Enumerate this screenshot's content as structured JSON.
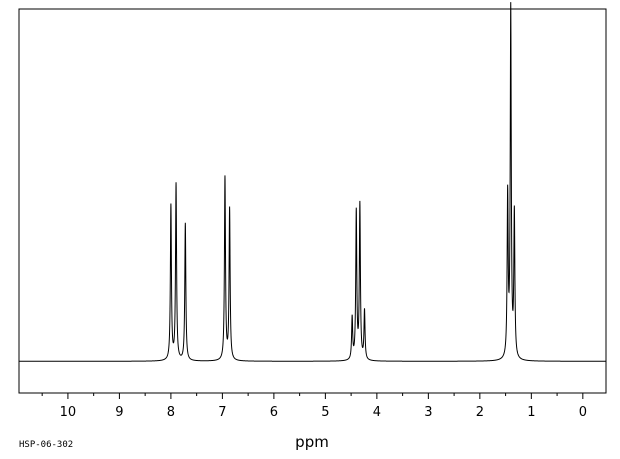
{
  "chart_data": {
    "type": "line",
    "title": "",
    "xlabel": "ppm",
    "ylabel": "",
    "xlim": [
      10.95,
      -0.45
    ],
    "x_reversed": true,
    "ylim": [
      -0.09,
      1.0
    ],
    "grid": false,
    "legend": "none",
    "x_ticks": [
      10,
      9,
      8,
      7,
      6,
      5,
      4,
      3,
      2,
      1,
      0
    ],
    "x_tick_labels": [
      "10",
      "9",
      "8",
      "7",
      "6",
      "5",
      "4",
      "3",
      "2",
      "1",
      "0"
    ],
    "baseline": 0.0,
    "series": [
      {
        "peaks": [
          {
            "x": 8.0,
            "y": 0.44
          },
          {
            "x": 7.9,
            "y": 0.5
          },
          {
            "x": 7.72,
            "y": 0.39
          },
          {
            "x": 6.95,
            "y": 0.52
          },
          {
            "x": 6.86,
            "y": 0.43
          },
          {
            "x": 4.48,
            "y": 0.12
          },
          {
            "x": 4.4,
            "y": 0.42
          },
          {
            "x": 4.33,
            "y": 0.44
          },
          {
            "x": 4.24,
            "y": 0.14
          },
          {
            "x": 1.46,
            "y": 0.46
          },
          {
            "x": 1.4,
            "y": 0.99
          },
          {
            "x": 1.33,
            "y": 0.41
          }
        ]
      }
    ]
  },
  "footer": {
    "code": "HSP-06-302"
  },
  "style": {
    "line_color": "#000000",
    "background": "#ffffff"
  }
}
